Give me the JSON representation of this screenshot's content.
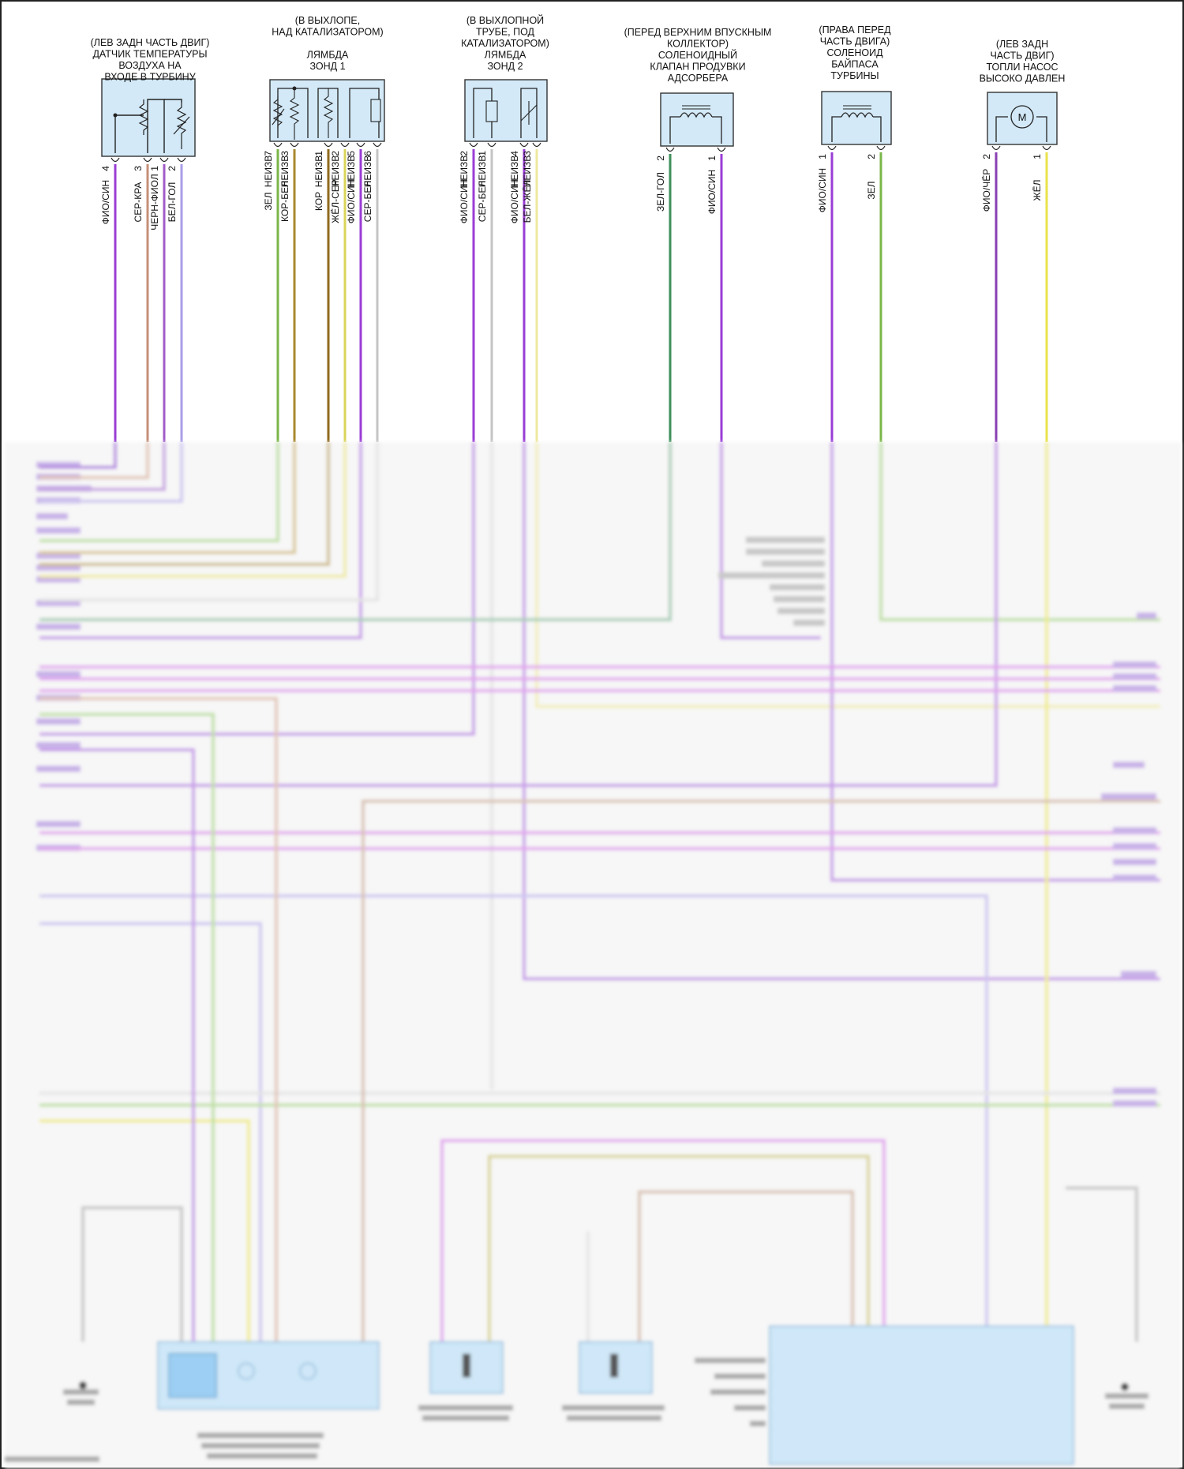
{
  "components": [
    {
      "id": "c1",
      "title_lines": [
        "(ЛЕВ ЗАДН ЧАСТЬ ДВИГ)",
        "ДАТЧИК ТЕМПЕРАТУРЫ",
        "ВОЗДУХА НА",
        "ВХОДЕ В ТУРБИНУ"
      ],
      "pins": [
        {
          "num": "4",
          "wire": "ФИО/СИН",
          "color": "#9a3dd6"
        },
        {
          "num": "3",
          "wire": "СЕР-КРА",
          "color": "#c58f78"
        },
        {
          "num": "1",
          "wire": "ЧЕРН-ФИОЛ",
          "color": "#a15cc7"
        },
        {
          "num": "2",
          "wire": "БЕЛ-ГОЛ",
          "color": "#a99ee8"
        }
      ]
    },
    {
      "id": "c2",
      "title_lines": [
        "(В ВЫХЛОПЕ,",
        "НАД КАТАЛИЗАТОРОМ)",
        "",
        "ЛЯМБДА",
        "ЗОНД 1"
      ],
      "pins": [
        {
          "num": "7",
          "wire": "ЗЕЛ",
          "neizv": "НЕИЗВ",
          "color": "#7ab648"
        },
        {
          "num": "3",
          "wire": "КОР-БЕЛ",
          "neizv": "НЕИЗВ",
          "color": "#a9882e"
        },
        {
          "num": "1",
          "wire": "КОР",
          "neizv": "НЕИЗВ",
          "color": "#8f6a1e"
        },
        {
          "num": "2",
          "wire": "ЖЁЛ-СЕР",
          "neizv": "НЕИЗВ",
          "color": "#d8d45a"
        },
        {
          "num": "5",
          "wire": "ФИО/СИН",
          "neizv": "НЕИЗВ",
          "color": "#9a3dd6"
        },
        {
          "num": "6",
          "wire": "СЕР-БЕЛ",
          "neizv": "НЕИЗВ",
          "color": "#c4c4c4"
        }
      ]
    },
    {
      "id": "c3",
      "title_lines": [
        "(В ВЫХЛОПНОЙ",
        "ТРУБЕ, ПОД",
        "КАТАЛИЗАТОРОМ)",
        "ЛЯМБДА",
        "ЗОНД 2"
      ],
      "pins": [
        {
          "num": "2",
          "wire": "ФИО/СИН",
          "neizv": "НЕИЗВ",
          "color": "#9a3dd6"
        },
        {
          "num": "1",
          "wire": "СЕР-БЕЛ",
          "neizv": "НЕИЗВ",
          "color": "#c4c4c4"
        },
        {
          "num": "4",
          "wire": "ФИО/СИН",
          "neizv": "НЕИЗВ",
          "color": "#9a3dd6"
        },
        {
          "num": "3",
          "wire": "БЕЛ-ЖЁЛ",
          "neizv": "НЕИЗВ",
          "color": "#eee8a0"
        }
      ]
    },
    {
      "id": "c4",
      "title_lines": [
        "(ПЕРЕД ВЕРХНИМ ВПУСКНЫМ",
        "КОЛЛЕКТОР)",
        "СОЛЕНОИДНЫЙ",
        "КЛАПАН ПРОДУВКИ",
        "АДСОРБЕРА"
      ],
      "pins": [
        {
          "num": "2",
          "wire": "ЗЕЛ-ГОЛ",
          "color": "#3e8f5a"
        },
        {
          "num": "1",
          "wire": "ФИО/СИН",
          "color": "#9a3dd6"
        }
      ]
    },
    {
      "id": "c5",
      "title_lines": [
        "(ПРАВА ПЕРЕД",
        "ЧАСТЬ ДВИГА)",
        "СОЛЕНОИД",
        "БАЙПАСА",
        "ТУРБИНЫ"
      ],
      "pins": [
        {
          "num": "1",
          "wire": "ФИО/СИН",
          "color": "#9a3dd6"
        },
        {
          "num": "2",
          "wire": "ЗЕЛ",
          "color": "#7ab648"
        }
      ]
    },
    {
      "id": "c6",
      "title_lines": [
        "(ЛЕВ ЗАДН",
        "ЧАСТЬ ДВИГ)",
        "ТОПЛИ НАСОС",
        "ВЫСОКО ДАВЛЕН"
      ],
      "pins": [
        {
          "num": "2",
          "wire": "ФИО/ЧЁР",
          "color": "#8a3fb3"
        },
        {
          "num": "1",
          "wire": "ЖЁЛ",
          "color": "#e8e24a"
        }
      ]
    }
  ],
  "motor_symbol": "M"
}
